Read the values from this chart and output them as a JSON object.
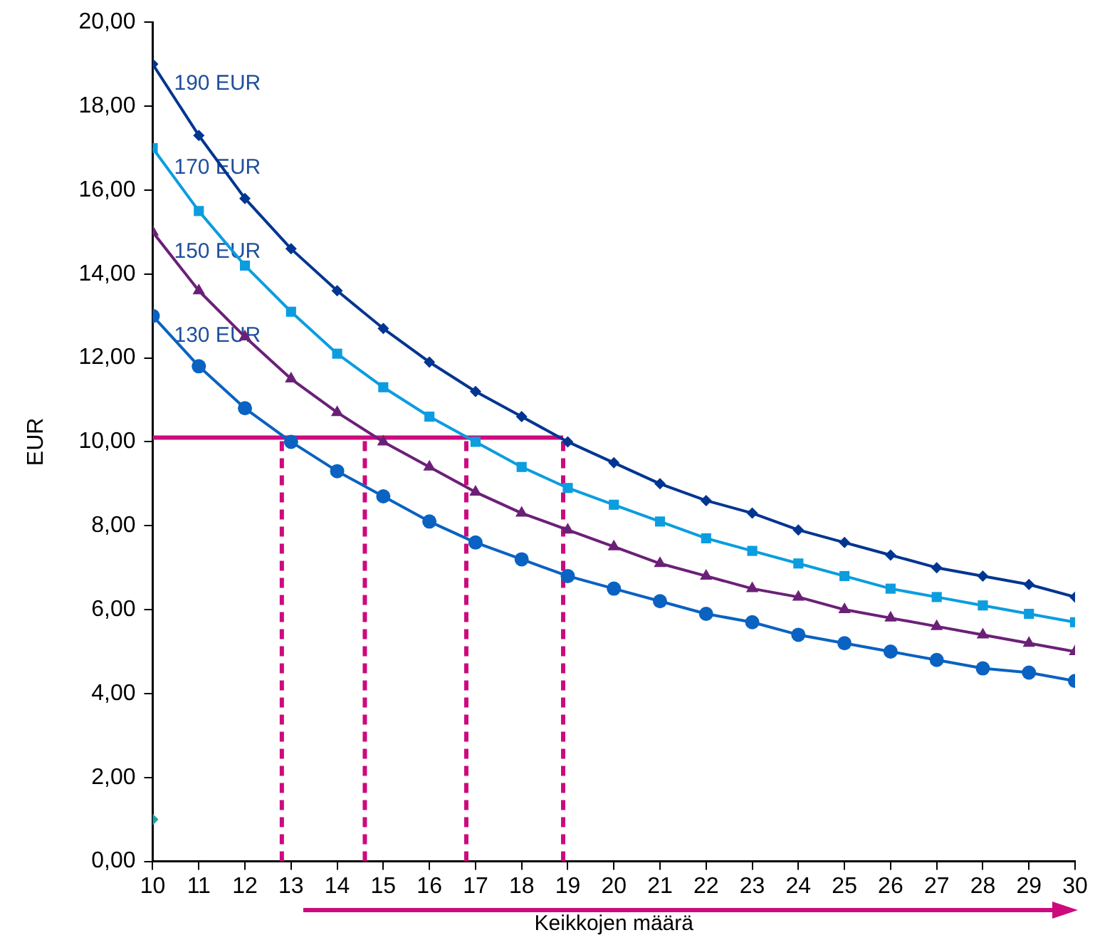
{
  "chart_data": {
    "type": "line",
    "xlabel": "Keikkojen määrä",
    "ylabel": "EUR",
    "xlim": [
      10,
      30
    ],
    "xticks": [
      10,
      11,
      12,
      13,
      14,
      15,
      16,
      17,
      18,
      19,
      20,
      21,
      22,
      23,
      24,
      25,
      26,
      27,
      28,
      29,
      30
    ],
    "ylim": [
      0,
      20
    ],
    "yticks": [
      {
        "value": 0,
        "label": "0,00"
      },
      {
        "value": 2,
        "label": "2,00"
      },
      {
        "value": 4,
        "label": "4,00"
      },
      {
        "value": 6,
        "label": "6,00"
      },
      {
        "value": 8,
        "label": "8,00"
      },
      {
        "value": 10,
        "label": "10,00"
      },
      {
        "value": 12,
        "label": "12,00"
      },
      {
        "value": 14,
        "label": "14,00"
      },
      {
        "value": 16,
        "label": "16,00"
      },
      {
        "value": 18,
        "label": "18,00"
      },
      {
        "value": 20,
        "label": "20,00"
      }
    ],
    "x": [
      10,
      11,
      12,
      13,
      14,
      15,
      16,
      17,
      18,
      19,
      20,
      21,
      22,
      23,
      24,
      25,
      26,
      27,
      28,
      29,
      30
    ],
    "grid": false,
    "legend": false,
    "series": [
      {
        "name": "190 EUR",
        "color": "#003591",
        "marker": "diamond",
        "values": [
          19.0,
          17.3,
          15.8,
          14.6,
          13.6,
          12.7,
          11.9,
          11.2,
          10.6,
          10.0,
          9.5,
          9.0,
          8.6,
          8.3,
          7.9,
          7.6,
          7.3,
          7.0,
          6.8,
          6.6,
          6.3
        ]
      },
      {
        "name": "170 EUR",
        "color": "#0b9ddf",
        "marker": "square",
        "values": [
          17.0,
          15.5,
          14.2,
          13.1,
          12.1,
          11.3,
          10.6,
          10.0,
          9.4,
          8.9,
          8.5,
          8.1,
          7.7,
          7.4,
          7.1,
          6.8,
          6.5,
          6.3,
          6.1,
          5.9,
          5.7
        ]
      },
      {
        "name": "150 EUR",
        "color": "#6b2077",
        "marker": "triangle",
        "values": [
          15.0,
          13.6,
          12.5,
          11.5,
          10.7,
          10.0,
          9.4,
          8.8,
          8.3,
          7.9,
          7.5,
          7.1,
          6.8,
          6.5,
          6.3,
          6.0,
          5.8,
          5.6,
          5.4,
          5.2,
          5.0
        ]
      },
      {
        "name": "130 EUR",
        "color": "#0a62c2",
        "marker": "circle",
        "values": [
          13.0,
          11.8,
          10.8,
          10.0,
          9.3,
          8.7,
          8.1,
          7.6,
          7.2,
          6.8,
          6.5,
          6.2,
          5.9,
          5.7,
          5.4,
          5.2,
          5.0,
          4.8,
          4.6,
          4.5,
          4.3
        ]
      },
      {
        "type": "scatter",
        "color": "#1aa59c",
        "marker": "diamond",
        "x": [
          10
        ],
        "values": [
          1.0
        ]
      },
      {
        "type": "line",
        "color": "#cc0a7e",
        "marker": "none",
        "line_style": "solid",
        "x": [
          10,
          18.9
        ],
        "values": [
          10.1,
          10.1
        ]
      },
      {
        "type": "line",
        "color": "#cc0a7e",
        "marker": "none",
        "line_style": "dashed",
        "x": [
          12.8,
          12.8
        ],
        "values": [
          0,
          10.1
        ]
      },
      {
        "type": "line",
        "color": "#cc0a7e",
        "marker": "none",
        "line_style": "dashed",
        "x": [
          14.6,
          14.6
        ],
        "values": [
          0,
          10.1
        ]
      },
      {
        "type": "line",
        "color": "#cc0a7e",
        "marker": "none",
        "line_style": "dashed",
        "x": [
          16.8,
          16.8
        ],
        "values": [
          0,
          10.1
        ]
      },
      {
        "type": "line",
        "color": "#cc0a7e",
        "marker": "none",
        "line_style": "dashed",
        "x": [
          18.9,
          18.9
        ],
        "values": [
          0,
          10.1
        ]
      }
    ]
  }
}
